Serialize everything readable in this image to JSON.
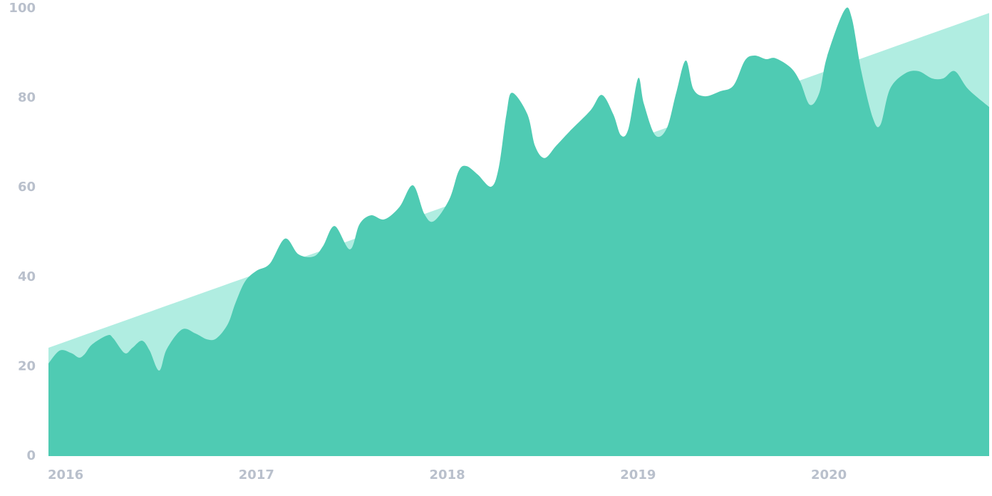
{
  "chart_data": {
    "type": "area",
    "xlim": [
      2015.91,
      2020.84
    ],
    "xticks": [
      2016,
      2017,
      2018,
      2019,
      2020
    ],
    "ylim": [
      0,
      100
    ],
    "yticks": [
      0,
      20,
      40,
      60,
      80,
      100
    ],
    "grid": false,
    "series": [
      {
        "color": "#b0ede1",
        "x": [
          2015.91,
          2020.84
        ],
        "values": [
          24.2,
          99
        ]
      },
      {
        "color": "#4fcbb3",
        "x": [
          2015.91,
          2015.97,
          2016.03,
          2016.07,
          2016.1,
          2016.14,
          2016.22,
          2016.25,
          2016.31,
          2016.35,
          2016.4,
          2016.44,
          2016.49,
          2016.53,
          2016.61,
          2016.68,
          2016.74,
          2016.79,
          2016.85,
          2016.89,
          2016.94,
          2017.0,
          2017.07,
          2017.15,
          2017.22,
          2017.3,
          2017.35,
          2017.41,
          2017.49,
          2017.54,
          2017.6,
          2017.67,
          2017.75,
          2017.82,
          2017.88,
          2017.93,
          2018.01,
          2018.06,
          2018.1,
          2018.16,
          2018.23,
          2018.27,
          2018.31,
          2018.34,
          2018.42,
          2018.46,
          2018.51,
          2018.57,
          2018.64,
          2018.75,
          2018.81,
          2018.87,
          2018.91,
          2018.95,
          2019.0,
          2019.03,
          2019.09,
          2019.15,
          2019.2,
          2019.25,
          2019.29,
          2019.35,
          2019.43,
          2019.5,
          2019.56,
          2019.61,
          2019.67,
          2019.72,
          2019.8,
          2019.85,
          2019.9,
          2019.95,
          2019.99,
          2020.08,
          2020.12,
          2020.17,
          2020.23,
          2020.27,
          2020.32,
          2020.4,
          2020.47,
          2020.54,
          2020.6,
          2020.66,
          2020.73,
          2020.84
        ],
        "values": [
          20.7,
          23.6,
          23,
          22,
          22.8,
          25,
          27,
          26.3,
          23,
          24.2,
          25.8,
          23.6,
          19.1,
          23.9,
          28.3,
          27.4,
          26.1,
          26.3,
          29.5,
          34.2,
          39,
          41.4,
          43,
          48.6,
          45.1,
          44.6,
          47,
          51.4,
          46.2,
          51.8,
          53.8,
          52.9,
          55.7,
          60.5,
          54.1,
          52.5,
          57.3,
          63.7,
          64.8,
          62.9,
          60.2,
          64.5,
          76.4,
          81.2,
          76.4,
          69.3,
          66.6,
          69.3,
          72.5,
          77.2,
          80.7,
          76.4,
          71.7,
          73.2,
          84.4,
          78.8,
          71.7,
          73.2,
          81.2,
          88.4,
          82,
          80.4,
          81.5,
          82.8,
          88.4,
          89.5,
          88.7,
          88.9,
          86.8,
          83.6,
          78.5,
          81.2,
          89.2,
          99.5,
          97.9,
          86,
          75.6,
          74,
          82,
          85.5,
          86,
          84.4,
          84.4,
          86,
          82,
          78
        ]
      }
    ]
  }
}
